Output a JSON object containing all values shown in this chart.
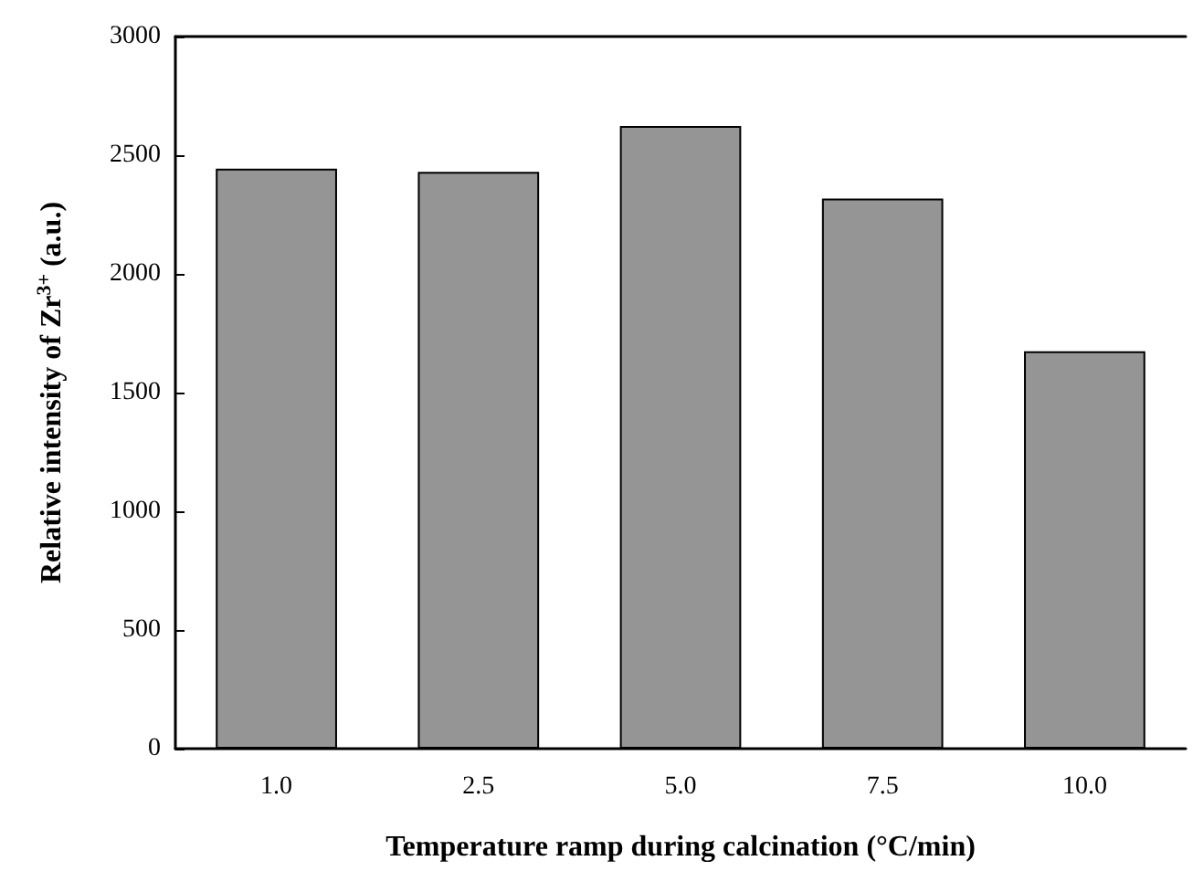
{
  "chart_data": {
    "type": "bar",
    "xlabel": "Temperature ramp during calcination (°C/min)",
    "ylabel": "Relative intensity of Zr$^{3+}$ (a.u.)",
    "categories": [
      "1.0",
      "2.5",
      "5.0",
      "7.5",
      "10.0"
    ],
    "values": [
      2443,
      2430,
      2623,
      2317,
      1674
    ],
    "color": "#959595",
    "ylim": [
      0,
      3000
    ],
    "yticks": [
      0,
      500,
      1000,
      1500,
      2000,
      2500,
      3000
    ],
    "grid": false
  }
}
